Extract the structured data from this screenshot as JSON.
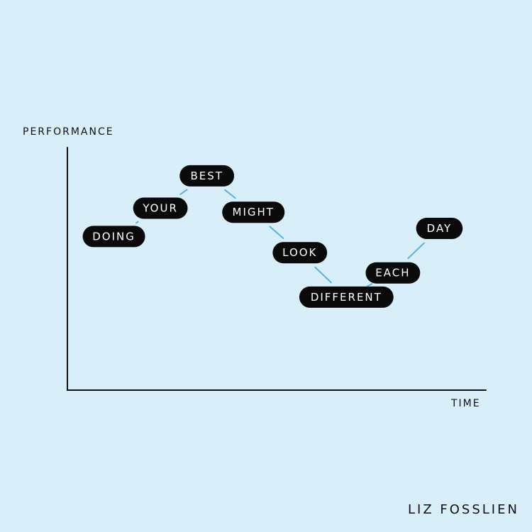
{
  "chart_data": {
    "type": "line",
    "ylabel": "PERFORMANCE",
    "xlabel": "TIME",
    "points": [
      {
        "label": "DOING",
        "x": 1,
        "y": 3.8
      },
      {
        "label": "YOUR",
        "x": 2,
        "y": 4.5
      },
      {
        "label": "BEST",
        "x": 3,
        "y": 5.3
      },
      {
        "label": "MIGHT",
        "x": 4,
        "y": 4.4
      },
      {
        "label": "LOOK",
        "x": 5,
        "y": 3.4
      },
      {
        "label": "DIFFERENT",
        "x": 6,
        "y": 2.3
      },
      {
        "label": "EACH",
        "x": 7,
        "y": 2.9
      },
      {
        "label": "DAY",
        "x": 8,
        "y": 4.0
      }
    ],
    "xlim": [
      0,
      9
    ],
    "ylim": [
      0,
      6
    ],
    "grid": false,
    "line_color": "#59b3e0",
    "pill_color": "#0a0a0a",
    "pill_text_color": "#ffffff"
  },
  "signature": "LIZ FOSSLIEN"
}
